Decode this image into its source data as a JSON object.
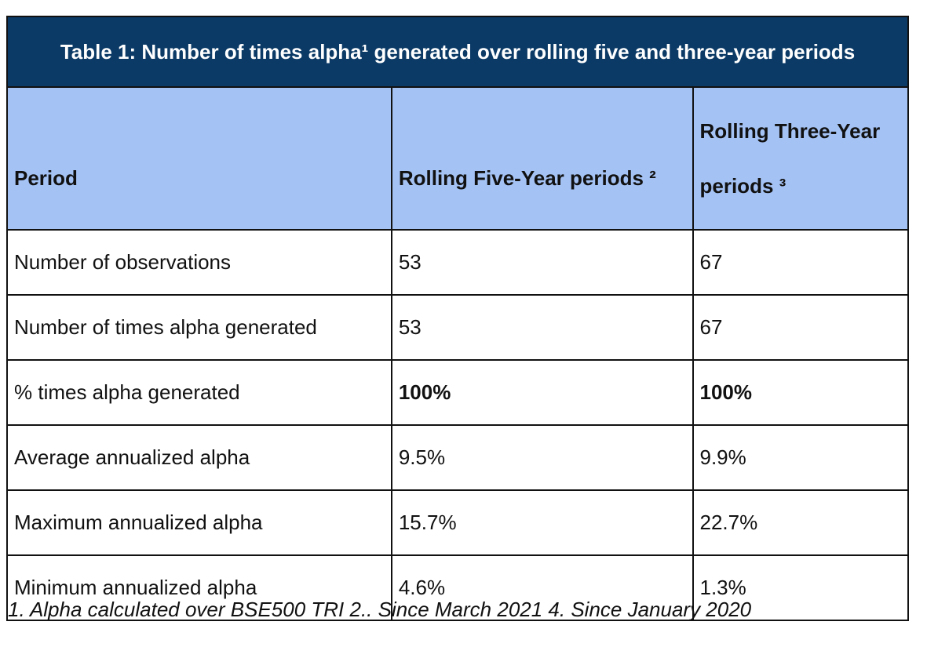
{
  "table": {
    "title": "Table 1: Number of times alpha¹ generated over rolling five and three-year periods",
    "headers": [
      "Period",
      "Rolling Five-Year periods ²",
      "Rolling Three-Year periods ³"
    ],
    "rows": [
      {
        "label": "Number of observations",
        "five_year": "53",
        "three_year": "67"
      },
      {
        "label": "Number of times alpha generated",
        "five_year": "53",
        "three_year": "67"
      },
      {
        "label": "% times alpha generated",
        "five_year": "100%",
        "three_year": "100%"
      },
      {
        "label": "Average annualized alpha",
        "five_year": "9.5%",
        "three_year": "9.9%"
      },
      {
        "label": "Maximum annualized alpha",
        "five_year": "15.7%",
        "three_year": "22.7%"
      },
      {
        "label": "Minimum annualized alpha",
        "five_year": "4.6%",
        "three_year": "1.3%"
      }
    ]
  },
  "footnote": "1. Alpha calculated over BSE500 TRI 2.. Since March 2021 4. Since January 2020",
  "colors": {
    "title_bg": "#0b3a66",
    "header_bg": "#a4c2f4",
    "border": "#111111"
  }
}
